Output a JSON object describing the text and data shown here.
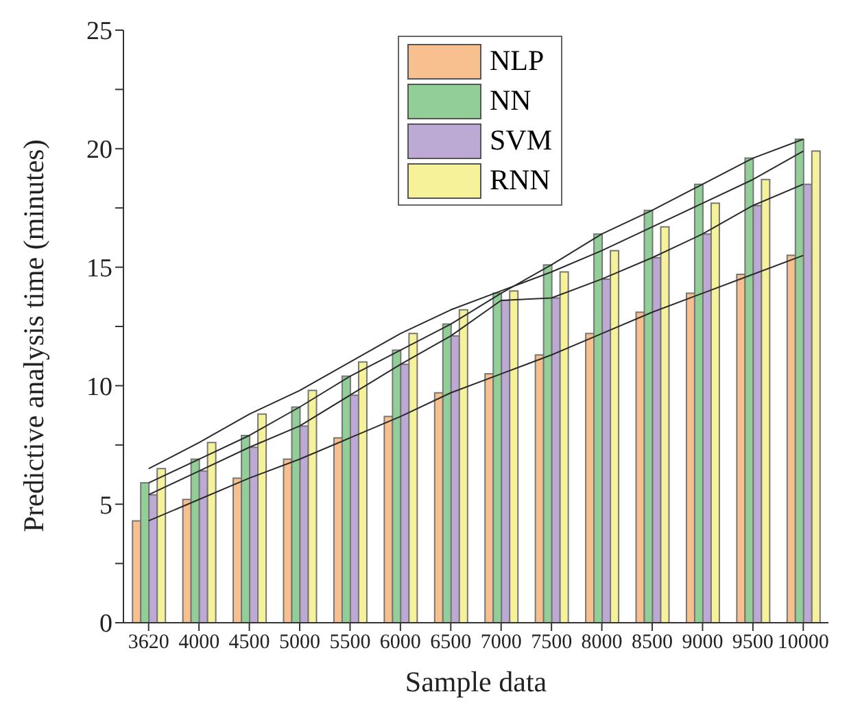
{
  "chart_data": {
    "type": "bar",
    "xlabel": "Sample data",
    "ylabel": "Predictive analysis time (minutes)",
    "categories": [
      "3620",
      "4000",
      "4500",
      "5000",
      "5500",
      "6000",
      "6500",
      "7000",
      "7500",
      "8000",
      "8500",
      "9000",
      "9500",
      "10000"
    ],
    "series": [
      {
        "name": "NLP",
        "color": "#f7c08e",
        "values": [
          4.3,
          5.2,
          6.1,
          6.9,
          7.8,
          8.7,
          9.7,
          10.5,
          11.3,
          12.2,
          13.1,
          13.9,
          14.7,
          15.5
        ]
      },
      {
        "name": "NN",
        "color": "#92cf98",
        "values": [
          5.9,
          6.9,
          7.9,
          9.1,
          10.4,
          11.5,
          12.6,
          13.9,
          15.1,
          16.4,
          17.4,
          18.5,
          19.6,
          20.4
        ]
      },
      {
        "name": "SVM",
        "color": "#bca9d4",
        "values": [
          5.4,
          6.4,
          7.4,
          8.3,
          9.6,
          10.9,
          12.1,
          13.6,
          13.7,
          14.5,
          15.4,
          16.4,
          17.6,
          18.5
        ]
      },
      {
        "name": "RNN",
        "color": "#f5f29a",
        "values": [
          6.5,
          7.6,
          8.8,
          9.8,
          11.0,
          12.2,
          13.2,
          14.0,
          14.8,
          15.7,
          16.7,
          17.7,
          18.7,
          19.9
        ]
      },
      {
        "type": "line",
        "color": "#2a2a2a",
        "values": [
          4.3,
          5.2,
          6.1,
          6.9,
          7.8,
          8.7,
          9.7,
          10.5,
          11.3,
          12.2,
          13.1,
          13.9,
          14.7,
          15.5
        ]
      },
      {
        "type": "line",
        "color": "#2a2a2a",
        "values": [
          5.9,
          6.9,
          7.9,
          9.1,
          10.4,
          11.5,
          12.6,
          13.9,
          15.1,
          16.4,
          17.4,
          18.5,
          19.6,
          20.4
        ]
      },
      {
        "type": "line",
        "color": "#2a2a2a",
        "values": [
          5.4,
          6.4,
          7.4,
          8.3,
          9.6,
          10.9,
          12.1,
          13.6,
          13.7,
          14.5,
          15.4,
          16.4,
          17.6,
          18.5
        ]
      },
      {
        "type": "line",
        "color": "#2a2a2a",
        "values": [
          6.5,
          7.6,
          8.8,
          9.8,
          11.0,
          12.2,
          13.2,
          14.0,
          14.8,
          15.7,
          16.7,
          17.7,
          18.7,
          19.9
        ]
      }
    ],
    "ylim": [
      0,
      25
    ],
    "yticks": [
      0,
      {
        "value": 2.5,
        "label": null
      },
      5,
      {
        "value": 7.5,
        "label": null
      },
      10,
      {
        "value": 12.5,
        "label": null
      },
      15,
      {
        "value": 17.5,
        "label": null
      },
      20,
      {
        "value": 22.5,
        "label": null
      },
      25
    ],
    "grid": false,
    "legend": "top",
    "marker": "none"
  }
}
